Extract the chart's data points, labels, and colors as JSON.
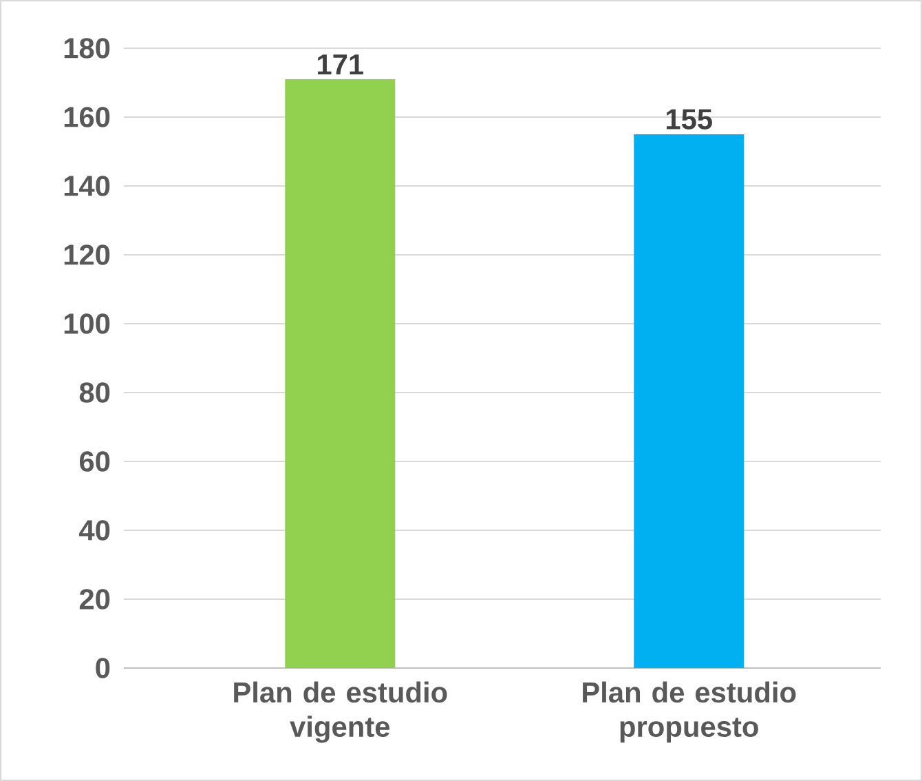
{
  "chart_data": {
    "type": "bar",
    "categories": [
      "Plan de estudio vigente",
      "Plan de estudio propuesto"
    ],
    "values": [
      171,
      155
    ],
    "colors": [
      "#92d050",
      "#00b0f0"
    ],
    "ylim": [
      0,
      180
    ],
    "yticks": [
      0,
      20,
      40,
      60,
      80,
      100,
      120,
      140,
      160,
      180
    ],
    "grid": "y",
    "data_labels": true
  }
}
